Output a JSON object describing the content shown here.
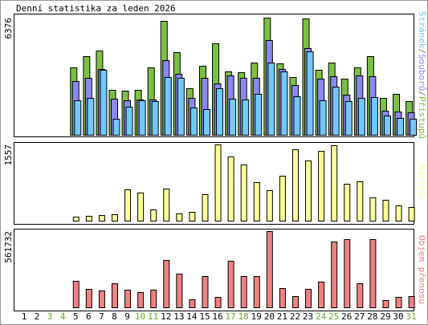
{
  "title": "Denní statistika za leden 2026",
  "legend_separator": "/",
  "chart_data": [
    {
      "type": "bar",
      "ylim": [
        0,
        6376
      ],
      "yticks": [
        6376
      ],
      "series": [
        {
          "name": "Přístupů",
          "color": "#7cc043",
          "values": [
            0,
            0,
            0,
            0,
            3668,
            4280,
            4585,
            2446,
            2402,
            2446,
            3668,
            6201,
            4498,
            2533,
            3756,
            4978,
            3450,
            3406,
            3930,
            6376,
            3887,
            3144,
            6332,
            3537,
            3930,
            3057,
            3668,
            4280,
            2009,
            2227,
            1834
          ]
        },
        {
          "name": "Souborů",
          "color": "#8c88f0",
          "values": [
            0,
            0,
            0,
            0,
            2926,
            3100,
            3581,
            1965,
            1878,
            1921,
            1921,
            4061,
            3319,
            2009,
            3100,
            2795,
            3232,
            3100,
            3100,
            5153,
            3581,
            2707,
            4716,
            3057,
            3188,
            2184,
            3232,
            3188,
            1310,
            1266,
            1223
          ]
        },
        {
          "name": "Stránek",
          "color": "#70c8ff",
          "values": [
            0,
            0,
            0,
            0,
            1878,
            2009,
            3537,
            873,
            1528,
            1878,
            1834,
            3144,
            3100,
            1485,
            1397,
            2533,
            1965,
            1921,
            2227,
            3930,
            3450,
            2096,
            4542,
            1878,
            2620,
            1834,
            2009,
            2052,
            1048,
            917,
            873
          ]
        }
      ]
    },
    {
      "type": "bar",
      "ylim": [
        0,
        1557
      ],
      "yticks": [
        1557
      ],
      "series": [
        {
          "name": "Návštěv",
          "color": "#ffff99",
          "values": [
            0,
            0,
            0,
            0,
            82,
            98,
            115,
            131,
            639,
            574,
            229,
            656,
            148,
            180,
            541,
            1557,
            1311,
            1147,
            787,
            623,
            918,
            1459,
            1229,
            1426,
            1541,
            754,
            803,
            475,
            426,
            311,
            279
          ]
        }
      ]
    },
    {
      "type": "bar",
      "ylim": [
        0,
        561732
      ],
      "yticks": [
        561732
      ],
      "categories": [
        "1",
        "2",
        "3",
        "4",
        "5",
        "6",
        "7",
        "8",
        "9",
        "10",
        "11",
        "12",
        "13",
        "14",
        "15",
        "16",
        "17",
        "18",
        "19",
        "20",
        "21",
        "22",
        "23",
        "24",
        "25",
        "26",
        "27",
        "28",
        "29",
        "30",
        "31"
      ],
      "category_colors": [
        "#000",
        "#000",
        "#66aa33",
        "#66aa33",
        "#000",
        "#000",
        "#000",
        "#000",
        "#000",
        "#66aa33",
        "#66aa33",
        "#000",
        "#000",
        "#000",
        "#000",
        "#000",
        "#66aa33",
        "#66aa33",
        "#000",
        "#000",
        "#000",
        "#000",
        "#000",
        "#66aa33",
        "#66aa33",
        "#000",
        "#000",
        "#000",
        "#000",
        "#000",
        "#66aa33"
      ],
      "series": [
        {
          "name": "Objem přenosu",
          "color": "#f08080",
          "values": [
            0,
            0,
            0,
            0,
            195128,
            136000,
            124173,
            177389,
            130085,
            112346,
            130085,
            348875,
            248347,
            59130,
            230606,
            76869,
            342962,
            230606,
            230606,
            561732,
            141911,
            82782,
            136000,
            189215,
            484863,
            502603,
            177389,
            502603,
            53216,
            76869,
            82782
          ]
        }
      ]
    }
  ]
}
